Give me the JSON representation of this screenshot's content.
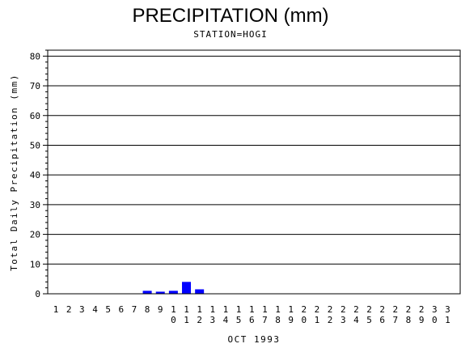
{
  "chart_data": {
    "type": "bar",
    "title": "PRECIPITATION (mm)",
    "subtitle": "STATION=HOGI",
    "xlabel": "OCT 1993",
    "ylabel": "Total Daily Precipitation (mm)",
    "ylim": [
      0,
      82
    ],
    "yticks": [
      0,
      10,
      20,
      30,
      40,
      50,
      60,
      70,
      80
    ],
    "grid": true,
    "bar_color": "#0000ff",
    "categories": [
      "1",
      "2",
      "3",
      "4",
      "5",
      "6",
      "7",
      "8",
      "9",
      "10",
      "11",
      "12",
      "13",
      "14",
      "15",
      "16",
      "17",
      "18",
      "19",
      "20",
      "21",
      "22",
      "23",
      "24",
      "25",
      "26",
      "27",
      "28",
      "29",
      "30",
      "31"
    ],
    "values": [
      0,
      0,
      0,
      0,
      0,
      0,
      0,
      1.0,
      0.7,
      1.0,
      4.0,
      1.5,
      0,
      0,
      0,
      0,
      0,
      0,
      0,
      0,
      0,
      0,
      0,
      0,
      0,
      0,
      0,
      0,
      0,
      0,
      0
    ]
  }
}
